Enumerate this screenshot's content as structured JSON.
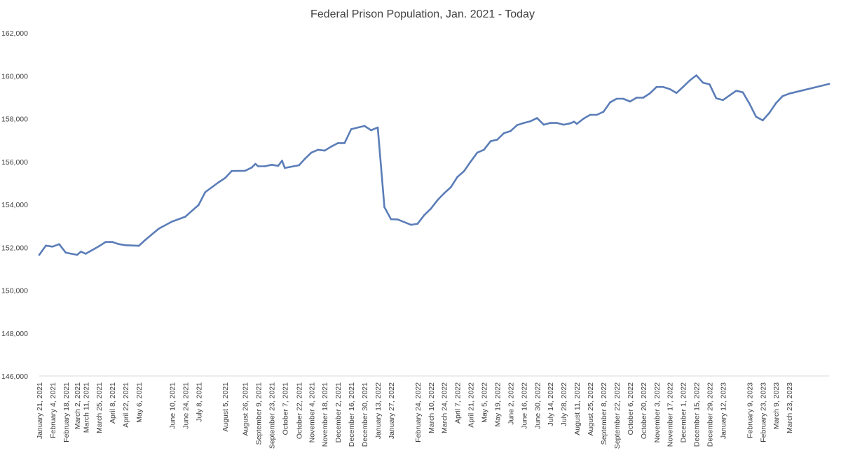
{
  "chart_data": {
    "type": "line",
    "title": "Federal Prison Population, Jan. 2021 - Today",
    "xlabel": "",
    "ylabel": "",
    "ylim": [
      146000,
      162000
    ],
    "y_ticks": [
      "146,000",
      "148,000",
      "150,000",
      "152,000",
      "154,000",
      "156,000",
      "158,000",
      "160,000",
      "162,000"
    ],
    "grid": false,
    "legend": "none",
    "line_color": "#5B7DB8",
    "x_tick_labels": [
      {
        "date": "2021-01-21",
        "label": "January 21, 2021"
      },
      {
        "date": "2021-02-04",
        "label": "February 4, 2021"
      },
      {
        "date": "2021-02-18",
        "label": "February 18, 2021"
      },
      {
        "date": "2021-03-02",
        "label": "March 2, 2021"
      },
      {
        "date": "2021-03-11",
        "label": "March 11, 2021"
      },
      {
        "date": "2021-03-25",
        "label": "March 25, 2021"
      },
      {
        "date": "2021-04-08",
        "label": "April 8, 2021"
      },
      {
        "date": "2021-04-22",
        "label": "April 22, 2021"
      },
      {
        "date": "2021-05-06",
        "label": "May 6, 2021"
      },
      {
        "date": "2021-06-10",
        "label": "June 10, 2021"
      },
      {
        "date": "2021-06-24",
        "label": "June 24, 2021"
      },
      {
        "date": "2021-07-08",
        "label": "July 8, 2021"
      },
      {
        "date": "2021-08-05",
        "label": "August 5, 2021"
      },
      {
        "date": "2021-08-26",
        "label": "August 26, 2021"
      },
      {
        "date": "2021-09-09",
        "label": "September 9, 2021"
      },
      {
        "date": "2021-09-23",
        "label": "September 23, 2021"
      },
      {
        "date": "2021-10-07",
        "label": "October 7, 2021"
      },
      {
        "date": "2021-10-22",
        "label": "October 22, 2021"
      },
      {
        "date": "2021-11-04",
        "label": "November 4, 2021"
      },
      {
        "date": "2021-11-18",
        "label": "November 18, 2021"
      },
      {
        "date": "2021-12-02",
        "label": "December 2, 2021"
      },
      {
        "date": "2021-12-16",
        "label": "December 16, 2021"
      },
      {
        "date": "2021-12-30",
        "label": "December 30, 2021"
      },
      {
        "date": "2022-01-13",
        "label": "January 13, 2022"
      },
      {
        "date": "2022-01-27",
        "label": "January 27, 2022"
      },
      {
        "date": "2022-02-24",
        "label": "February 24, 2022"
      },
      {
        "date": "2022-03-10",
        "label": "March 10, 2022"
      },
      {
        "date": "2022-03-24",
        "label": "March 24, 2022"
      },
      {
        "date": "2022-04-07",
        "label": "April 7, 2022"
      },
      {
        "date": "2022-04-21",
        "label": "April 21, 2022"
      },
      {
        "date": "2022-05-05",
        "label": "May 5, 2022"
      },
      {
        "date": "2022-05-19",
        "label": "May 19, 2022"
      },
      {
        "date": "2022-06-02",
        "label": "June 2, 2022"
      },
      {
        "date": "2022-06-16",
        "label": "June 16, 2022"
      },
      {
        "date": "2022-06-30",
        "label": "June 30, 2022"
      },
      {
        "date": "2022-07-14",
        "label": "July 14, 2022"
      },
      {
        "date": "2022-07-28",
        "label": "July 28, 2022"
      },
      {
        "date": "2022-08-11",
        "label": "August 11, 2022"
      },
      {
        "date": "2022-08-25",
        "label": "August 25, 2022"
      },
      {
        "date": "2022-09-08",
        "label": "September 8, 2022"
      },
      {
        "date": "2022-09-22",
        "label": "September 22, 2022"
      },
      {
        "date": "2022-10-06",
        "label": "October 6, 2022"
      },
      {
        "date": "2022-10-20",
        "label": "October 20, 2022"
      },
      {
        "date": "2022-11-03",
        "label": "November 3, 2022"
      },
      {
        "date": "2022-11-17",
        "label": "November 17, 2022"
      },
      {
        "date": "2022-12-01",
        "label": "December 1, 2022"
      },
      {
        "date": "2022-12-15",
        "label": "December 15, 2022"
      },
      {
        "date": "2022-12-29",
        "label": "December 29, 2022"
      },
      {
        "date": "2023-01-12",
        "label": "January 12, 2023"
      },
      {
        "date": "2023-02-09",
        "label": "February 9, 2023"
      },
      {
        "date": "2023-02-23",
        "label": "February 23, 2023"
      },
      {
        "date": "2023-03-09",
        "label": "March 9, 2023"
      },
      {
        "date": "2023-03-23",
        "label": "March 23, 2023"
      }
    ],
    "series": [
      {
        "points": [
          {
            "x": "2021-01-21",
            "y": 151650
          },
          {
            "x": "2021-01-28",
            "y": 152080
          },
          {
            "x": "2021-02-04",
            "y": 152030
          },
          {
            "x": "2021-02-11",
            "y": 152150
          },
          {
            "x": "2021-02-18",
            "y": 151750
          },
          {
            "x": "2021-03-02",
            "y": 151650
          },
          {
            "x": "2021-03-06",
            "y": 151800
          },
          {
            "x": "2021-03-11",
            "y": 151700
          },
          {
            "x": "2021-03-25",
            "y": 152050
          },
          {
            "x": "2021-04-01",
            "y": 152250
          },
          {
            "x": "2021-04-08",
            "y": 152250
          },
          {
            "x": "2021-04-15",
            "y": 152150
          },
          {
            "x": "2021-04-22",
            "y": 152100
          },
          {
            "x": "2021-05-06",
            "y": 152070
          },
          {
            "x": "2021-05-13",
            "y": 152350
          },
          {
            "x": "2021-05-27",
            "y": 152870
          },
          {
            "x": "2021-06-10",
            "y": 153200
          },
          {
            "x": "2021-06-24",
            "y": 153430
          },
          {
            "x": "2021-07-01",
            "y": 153700
          },
          {
            "x": "2021-07-08",
            "y": 153970
          },
          {
            "x": "2021-07-15",
            "y": 154570
          },
          {
            "x": "2021-07-29",
            "y": 155030
          },
          {
            "x": "2021-08-05",
            "y": 155230
          },
          {
            "x": "2021-08-12",
            "y": 155560
          },
          {
            "x": "2021-08-26",
            "y": 155570
          },
          {
            "x": "2021-09-02",
            "y": 155720
          },
          {
            "x": "2021-09-06",
            "y": 155890
          },
          {
            "x": "2021-09-09",
            "y": 155780
          },
          {
            "x": "2021-09-16",
            "y": 155780
          },
          {
            "x": "2021-09-23",
            "y": 155850
          },
          {
            "x": "2021-09-30",
            "y": 155800
          },
          {
            "x": "2021-10-04",
            "y": 156040
          },
          {
            "x": "2021-10-07",
            "y": 155700
          },
          {
            "x": "2021-10-22",
            "y": 155830
          },
          {
            "x": "2021-10-28",
            "y": 156120
          },
          {
            "x": "2021-11-04",
            "y": 156420
          },
          {
            "x": "2021-11-11",
            "y": 156550
          },
          {
            "x": "2021-11-18",
            "y": 156510
          },
          {
            "x": "2021-11-25",
            "y": 156700
          },
          {
            "x": "2021-12-02",
            "y": 156860
          },
          {
            "x": "2021-12-09",
            "y": 156860
          },
          {
            "x": "2021-12-16",
            "y": 157510
          },
          {
            "x": "2021-12-30",
            "y": 157660
          },
          {
            "x": "2022-01-06",
            "y": 157460
          },
          {
            "x": "2022-01-13",
            "y": 157590
          },
          {
            "x": "2022-01-20",
            "y": 153880
          },
          {
            "x": "2022-01-27",
            "y": 153310
          },
          {
            "x": "2022-02-03",
            "y": 153300
          },
          {
            "x": "2022-02-17",
            "y": 153050
          },
          {
            "x": "2022-02-24",
            "y": 153100
          },
          {
            "x": "2022-03-03",
            "y": 153500
          },
          {
            "x": "2022-03-10",
            "y": 153800
          },
          {
            "x": "2022-03-17",
            "y": 154200
          },
          {
            "x": "2022-03-24",
            "y": 154520
          },
          {
            "x": "2022-03-31",
            "y": 154800
          },
          {
            "x": "2022-04-07",
            "y": 155280
          },
          {
            "x": "2022-04-14",
            "y": 155550
          },
          {
            "x": "2022-04-21",
            "y": 156000
          },
          {
            "x": "2022-04-28",
            "y": 156420
          },
          {
            "x": "2022-05-05",
            "y": 156550
          },
          {
            "x": "2022-05-12",
            "y": 156950
          },
          {
            "x": "2022-05-19",
            "y": 157020
          },
          {
            "x": "2022-05-26",
            "y": 157320
          },
          {
            "x": "2022-06-02",
            "y": 157420
          },
          {
            "x": "2022-06-09",
            "y": 157700
          },
          {
            "x": "2022-06-16",
            "y": 157800
          },
          {
            "x": "2022-06-23",
            "y": 157880
          },
          {
            "x": "2022-06-30",
            "y": 158030
          },
          {
            "x": "2022-07-07",
            "y": 157720
          },
          {
            "x": "2022-07-14",
            "y": 157800
          },
          {
            "x": "2022-07-21",
            "y": 157800
          },
          {
            "x": "2022-07-28",
            "y": 157720
          },
          {
            "x": "2022-08-04",
            "y": 157780
          },
          {
            "x": "2022-08-08",
            "y": 157860
          },
          {
            "x": "2022-08-11",
            "y": 157760
          },
          {
            "x": "2022-08-18",
            "y": 158000
          },
          {
            "x": "2022-08-25",
            "y": 158180
          },
          {
            "x": "2022-09-01",
            "y": 158180
          },
          {
            "x": "2022-09-08",
            "y": 158320
          },
          {
            "x": "2022-09-15",
            "y": 158760
          },
          {
            "x": "2022-09-22",
            "y": 158930
          },
          {
            "x": "2022-09-29",
            "y": 158930
          },
          {
            "x": "2022-10-06",
            "y": 158800
          },
          {
            "x": "2022-10-13",
            "y": 158980
          },
          {
            "x": "2022-10-20",
            "y": 158980
          },
          {
            "x": "2022-10-27",
            "y": 159180
          },
          {
            "x": "2022-11-03",
            "y": 159480
          },
          {
            "x": "2022-11-10",
            "y": 159480
          },
          {
            "x": "2022-11-17",
            "y": 159380
          },
          {
            "x": "2022-11-24",
            "y": 159200
          },
          {
            "x": "2022-12-01",
            "y": 159480
          },
          {
            "x": "2022-12-08",
            "y": 159780
          },
          {
            "x": "2022-12-15",
            "y": 160020
          },
          {
            "x": "2022-12-22",
            "y": 159680
          },
          {
            "x": "2022-12-29",
            "y": 159600
          },
          {
            "x": "2023-01-05",
            "y": 158950
          },
          {
            "x": "2023-01-12",
            "y": 158870
          },
          {
            "x": "2023-01-26",
            "y": 159300
          },
          {
            "x": "2023-02-02",
            "y": 159230
          },
          {
            "x": "2023-02-09",
            "y": 158700
          },
          {
            "x": "2023-02-16",
            "y": 158090
          },
          {
            "x": "2023-02-23",
            "y": 157920
          },
          {
            "x": "2023-03-02",
            "y": 158270
          },
          {
            "x": "2023-03-09",
            "y": 158720
          },
          {
            "x": "2023-03-16",
            "y": 159050
          },
          {
            "x": "2023-03-23",
            "y": 159170
          },
          {
            "x": "2023-05-04",
            "y": 159620
          }
        ]
      }
    ]
  }
}
